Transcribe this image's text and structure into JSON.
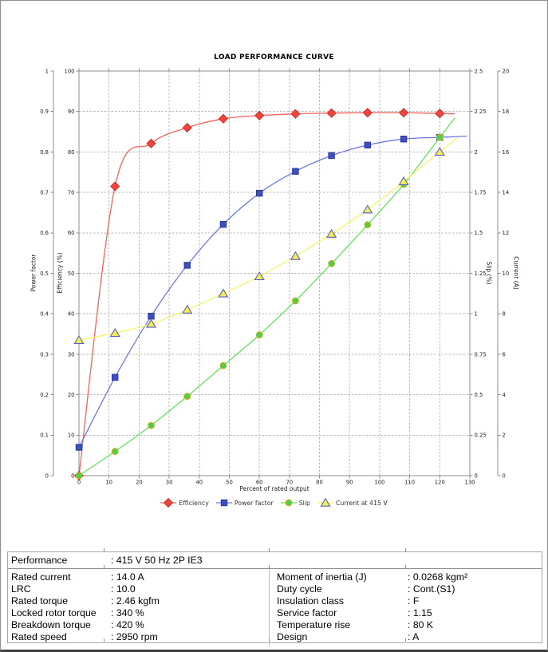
{
  "chart_data": {
    "type": "line",
    "title": "LOAD PERFORMANCE CURVE",
    "xlabel": "Percent of rated output",
    "xlim": [
      0,
      130
    ],
    "x_ticks": [
      "0",
      "10",
      "20",
      "30",
      "40",
      "50",
      "60",
      "70",
      "80",
      "90",
      "100",
      "110",
      "120",
      "130"
    ],
    "grid": true,
    "legend_position": "bottom",
    "axes": {
      "power_factor": {
        "title": "Power factor",
        "lim": [
          0,
          1
        ],
        "side": "left-outer",
        "ticks": [
          "0",
          "0.1",
          "0.2",
          "0.3",
          "0.4",
          "0.5",
          "0.6",
          "0.7",
          "0.8",
          "0.9",
          "1"
        ]
      },
      "efficiency": {
        "title": "Efficiency (%)",
        "lim": [
          0,
          100
        ],
        "side": "left",
        "ticks": [
          "0",
          "10",
          "20",
          "30",
          "40",
          "50",
          "60",
          "70",
          "80",
          "90",
          "100"
        ]
      },
      "slip": {
        "title": "Slip (%)",
        "lim": [
          0,
          2.5
        ],
        "side": "right",
        "ticks": [
          "0",
          "0.25",
          "0.5",
          "0.75",
          "1",
          "1.25",
          "1.5",
          "1.75",
          "2",
          "2.25",
          "2.5"
        ]
      },
      "current": {
        "title": "Current (A)",
        "lim": [
          0,
          20
        ],
        "side": "right-outer",
        "ticks": [
          "0",
          "2",
          "4",
          "6",
          "8",
          "10",
          "12",
          "14",
          "16",
          "18",
          "20"
        ]
      }
    },
    "x": [
      0,
      12,
      24,
      36,
      48,
      60,
      72,
      84,
      96,
      108,
      120
    ],
    "series": [
      {
        "name": "Efficiency",
        "axis": "efficiency",
        "marker": "diamond",
        "color": "#ee453d",
        "edge": "#cb2d26",
        "line": "#f4625c",
        "line_end_x": 125,
        "values": [
          0,
          71.5,
          82.1,
          86.0,
          88.2,
          89.0,
          89.4,
          89.6,
          89.7,
          89.7,
          89.5
        ]
      },
      {
        "name": "Power factor",
        "axis": "power_factor",
        "marker": "square",
        "color": "#3d4fc3",
        "edge": "#2a379d",
        "line": "#6e78e2",
        "line_end_x": 129,
        "values": [
          0.07,
          0.243,
          0.394,
          0.52,
          0.621,
          0.698,
          0.752,
          0.791,
          0.817,
          0.832,
          0.836
        ]
      },
      {
        "name": "Slip",
        "axis": "slip",
        "marker": "circle",
        "color": "#4fd146",
        "edge": "#d8a81e",
        "line": "#63e35c",
        "line_end_x": 125,
        "values": [
          0,
          0.15,
          0.31,
          0.49,
          0.68,
          0.87,
          1.08,
          1.31,
          1.55,
          1.8,
          2.09
        ]
      },
      {
        "name": "Current at 415 V",
        "axis": "current",
        "marker": "triangle",
        "color": "#f4f04e",
        "edge": "#5a5ecc",
        "line": "#f7f566",
        "line_end_x": 126,
        "values": [
          6.7,
          7.05,
          7.5,
          8.2,
          9.0,
          9.85,
          10.85,
          11.95,
          13.15,
          14.55,
          16.0
        ]
      }
    ],
    "colors": {
      "grid": "#b9b9b9",
      "axis": "#8c8c8c",
      "tick_text": "#222222"
    }
  },
  "table": {
    "performance": {
      "label": "Performance",
      "value": ": 415 V 50 Hz 2P IE3"
    },
    "left_rows": [
      {
        "label": "Rated current",
        "value": ": 14.0 A"
      },
      {
        "label": "LRC",
        "value": ": 10.0"
      },
      {
        "label": "Rated torque",
        "value": ": 2.46 kgfm"
      },
      {
        "label": "Locked rotor torque",
        "value": ": 340 %"
      },
      {
        "label": "Breakdown torque",
        "value": ": 420 %"
      },
      {
        "label": "Rated speed",
        "value": ": 2950 rpm"
      }
    ],
    "right_rows": [
      {
        "label": "Moment of inertia (J)",
        "value": ": 0.0268 kgm²"
      },
      {
        "label": "Duty cycle",
        "value": ": Cont.(S1)"
      },
      {
        "label": "Insulation class",
        "value": ": F"
      },
      {
        "label": "Service factor",
        "value": ": 1.15"
      },
      {
        "label": "Temperature rise",
        "value": ": 80 K"
      },
      {
        "label": "Design",
        "value": ": A"
      }
    ]
  }
}
